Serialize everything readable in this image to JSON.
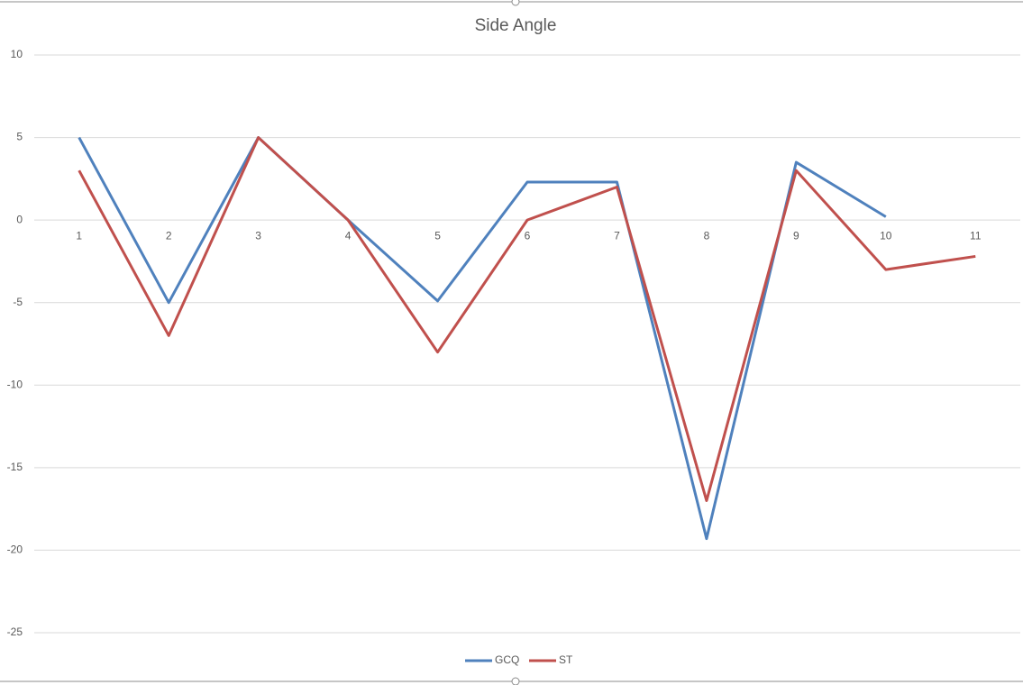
{
  "chart_data": {
    "type": "line",
    "title": "Side Angle",
    "categories": [
      "1",
      "2",
      "3",
      "4",
      "5",
      "6",
      "7",
      "8",
      "9",
      "10",
      "11"
    ],
    "series": [
      {
        "name": "GCQ",
        "color": "#4f81bd",
        "values": [
          5,
          -5,
          5,
          0,
          -4.9,
          2.3,
          2.3,
          -19.3,
          3.5,
          0.2,
          null
        ]
      },
      {
        "name": "ST",
        "color": "#c0504d",
        "values": [
          3,
          -7,
          5,
          0,
          -8,
          0,
          2,
          -17,
          3,
          -3,
          -2.2
        ]
      }
    ],
    "ylim": [
      -25,
      10
    ],
    "yticks": [
      -25,
      -20,
      -15,
      -10,
      -5,
      0,
      5,
      10
    ],
    "grid": true,
    "legend": "bottom"
  }
}
